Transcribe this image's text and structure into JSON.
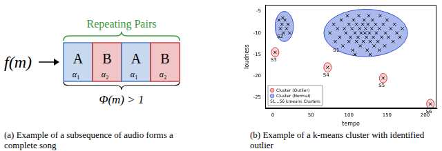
{
  "panel_a": {
    "function": "f(m)",
    "top_label": "Repeating Pairs",
    "bottom_label": "Φ(m) > 1",
    "boxes": [
      {
        "label": "A",
        "symbol": "α",
        "index": "1",
        "color": "#4a7fc8"
      },
      {
        "label": "B",
        "symbol": "α",
        "index": "2",
        "color": "#d04040"
      },
      {
        "label": "A",
        "symbol": "α",
        "index": "1",
        "color": "#4a7fc8"
      },
      {
        "label": "B",
        "symbol": "α",
        "index": "2",
        "color": "#d04040"
      }
    ],
    "top_color": "#3a9a3a"
  },
  "chart_data": {
    "type": "scatter",
    "x_label": "tempo",
    "y_label": "loudness",
    "xlim": [
      -10,
      215
    ],
    "xticks": [
      0,
      50,
      100,
      150,
      200
    ],
    "ylim": [
      -27.5,
      -3.5
    ],
    "yticks": [
      -5,
      -10,
      -15,
      -20,
      -25
    ],
    "grid": false,
    "marker": "x",
    "legend": "lower left",
    "legend_items": [
      {
        "label": "Cluster (Outlier)",
        "color": "#e03030"
      },
      {
        "label": "Cluster (Normal)",
        "color": "#3050d0"
      },
      {
        "label": "S1...S6 kmeans Clusters"
      }
    ],
    "series": [
      {
        "name": "S1",
        "kind": "normal",
        "color": "#3050d0",
        "center": [
          122,
          -10
        ],
        "rx": 55,
        "ry": 5.5,
        "points": [
          [
            75,
            -10
          ],
          [
            80,
            -8
          ],
          [
            82,
            -12
          ],
          [
            85,
            -9
          ],
          [
            88,
            -11
          ],
          [
            90,
            -7
          ],
          [
            92,
            -13
          ],
          [
            94,
            -9
          ],
          [
            96,
            -10
          ],
          [
            98,
            -6
          ],
          [
            100,
            -8
          ],
          [
            100,
            -12
          ],
          [
            102,
            -11
          ],
          [
            104,
            -9
          ],
          [
            105,
            -14
          ],
          [
            106,
            -7
          ],
          [
            108,
            -10
          ],
          [
            110,
            -8
          ],
          [
            110,
            -12
          ],
          [
            112,
            -11
          ],
          [
            113,
            -6
          ],
          [
            114,
            -9
          ],
          [
            115,
            -13
          ],
          [
            116,
            -10
          ],
          [
            118,
            -8
          ],
          [
            119,
            -12
          ],
          [
            120,
            -7
          ],
          [
            121,
            -10
          ],
          [
            122,
            -9
          ],
          [
            123,
            -11
          ],
          [
            124,
            -14
          ],
          [
            125,
            -8
          ],
          [
            126,
            -6
          ],
          [
            127,
            -10
          ],
          [
            128,
            -12
          ],
          [
            130,
            -9
          ],
          [
            131,
            -7
          ],
          [
            132,
            -11
          ],
          [
            133,
            -13
          ],
          [
            135,
            -8
          ],
          [
            136,
            -10
          ],
          [
            138,
            -12
          ],
          [
            140,
            -9
          ],
          [
            141,
            -6
          ],
          [
            143,
            -11
          ],
          [
            145,
            -8
          ],
          [
            147,
            -13
          ],
          [
            148,
            -10
          ],
          [
            150,
            -7
          ],
          [
            152,
            -11
          ],
          [
            155,
            -9
          ],
          [
            158,
            -12
          ],
          [
            160,
            -8
          ],
          [
            163,
            -10
          ],
          [
            167,
            -11
          ],
          [
            170,
            -9
          ],
          [
            108,
            -15
          ],
          [
            128,
            -15
          ],
          [
            140,
            -14
          ]
        ]
      },
      {
        "name": "S2",
        "kind": "normal",
        "color": "#3050d0",
        "center": [
          15,
          -8.5
        ],
        "rx": 12,
        "ry": 3.5,
        "points": [
          [
            8,
            -7
          ],
          [
            10,
            -9
          ],
          [
            12,
            -8
          ],
          [
            14,
            -10
          ],
          [
            16,
            -7
          ],
          [
            18,
            -9
          ],
          [
            20,
            -8
          ],
          [
            13,
            -6.5
          ],
          [
            22,
            -10
          ]
        ]
      },
      {
        "name": "S3",
        "kind": "outlier",
        "color": "#e03030",
        "center": [
          3,
          -14.5
        ],
        "rx": 5,
        "ry": 1.1,
        "points": [
          [
            3,
            -14.5
          ]
        ]
      },
      {
        "name": "S4",
        "kind": "outlier",
        "color": "#e03030",
        "center": [
          72,
          -18
        ],
        "rx": 5,
        "ry": 1.1,
        "points": [
          [
            72,
            -18
          ]
        ]
      },
      {
        "name": "S5",
        "kind": "outlier",
        "color": "#e03030",
        "center": [
          145,
          -20.5
        ],
        "rx": 5,
        "ry": 1.1,
        "points": [
          [
            145,
            -20.5
          ]
        ]
      },
      {
        "name": "S6",
        "kind": "outlier",
        "color": "#e03030",
        "center": [
          207,
          -26.5
        ],
        "rx": 5,
        "ry": 1.1,
        "points": [
          [
            207,
            -26.5
          ]
        ]
      }
    ]
  },
  "captions": {
    "a": "(a) Example of a subsequence of audio forms a complete song",
    "b": "(b) Example of a k-means cluster with identified outlier"
  }
}
